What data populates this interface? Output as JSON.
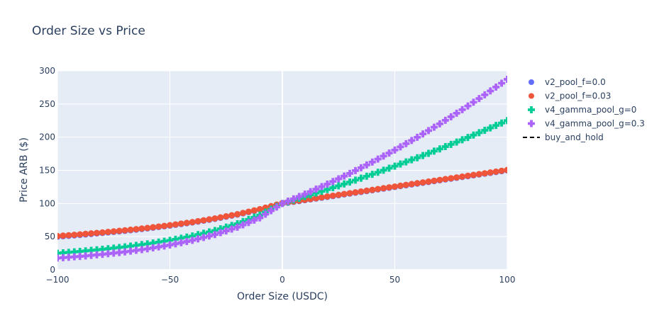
{
  "chart_data": {
    "type": "scatter",
    "title": "Order Size vs Price",
    "xlabel": "Order Size (USDC)",
    "ylabel": "Price ARB ($)",
    "xlim": [
      -100,
      100
    ],
    "ylim": [
      0,
      300
    ],
    "x_ticks": [
      -100,
      -50,
      0,
      50,
      100
    ],
    "y_ticks": [
      0,
      50,
      100,
      150,
      200,
      250,
      300
    ],
    "x_tick_labels": [
      "−100",
      "−50",
      "0",
      "50",
      "100"
    ],
    "y_tick_labels": [
      "0",
      "50",
      "100",
      "150",
      "200",
      "250",
      "300"
    ],
    "grid": true,
    "legend_position": "right",
    "series": [
      {
        "name": "v2_pool_f=0.0",
        "marker": "circle",
        "color": "#636efa",
        "x": [
          -100,
          -90,
          -80,
          -70,
          -60,
          -50,
          -40,
          -30,
          -20,
          -10,
          0,
          10,
          20,
          30,
          40,
          50,
          60,
          70,
          80,
          90,
          100
        ],
        "y": [
          50,
          52.6,
          55.6,
          58.8,
          62.5,
          66.7,
          71.4,
          76.9,
          83.3,
          90.9,
          100,
          105,
          110,
          115,
          120,
          125,
          130,
          135,
          140,
          145,
          150
        ]
      },
      {
        "name": "v2_pool_f=0.03",
        "marker": "circle",
        "color": "#ef553b",
        "x": [
          -100,
          -90,
          -80,
          -70,
          -60,
          -50,
          -40,
          -30,
          -20,
          -10,
          0,
          10,
          20,
          30,
          40,
          50,
          60,
          70,
          80,
          90,
          100
        ],
        "y": [
          50.8,
          53.4,
          56.3,
          59.5,
          63.1,
          67.2,
          71.9,
          77.4,
          83.8,
          91.4,
          100.5,
          105.5,
          110.5,
          115.5,
          120.5,
          125.5,
          130.5,
          135.5,
          140.5,
          145.5,
          150.5
        ]
      },
      {
        "name": "v4_gamma_pool_g=0",
        "marker": "cross",
        "color": "#00cc96",
        "x": [
          -100,
          -90,
          -80,
          -70,
          -60,
          -50,
          -40,
          -30,
          -20,
          -10,
          0,
          10,
          20,
          30,
          40,
          50,
          60,
          70,
          80,
          90,
          100
        ],
        "y": [
          25,
          27.7,
          30.9,
          34.6,
          39.1,
          44.4,
          51,
          59.2,
          69.4,
          82.6,
          100,
          110.3,
          121,
          132.2,
          144,
          156.3,
          169,
          182.3,
          196,
          210.3,
          225
        ]
      },
      {
        "name": "v4_gamma_pool_g=0.3",
        "marker": "cross",
        "color": "#ab63fa",
        "x": [
          -100,
          -90,
          -80,
          -70,
          -60,
          -50,
          -40,
          -30,
          -20,
          -10,
          0,
          10,
          20,
          30,
          40,
          50,
          60,
          70,
          80,
          90,
          100
        ],
        "y": [
          17.7,
          20.2,
          23.3,
          27,
          31.6,
          37.4,
          44.4,
          53.1,
          64.2,
          78.4,
          100,
          114.1,
          129.2,
          145.3,
          162.4,
          180.6,
          199.8,
          220.1,
          241.4,
          263.8,
          287.2
        ]
      },
      {
        "name": "buy_and_hold",
        "marker": "dash",
        "color": "#000000",
        "x": [],
        "y": []
      }
    ]
  }
}
